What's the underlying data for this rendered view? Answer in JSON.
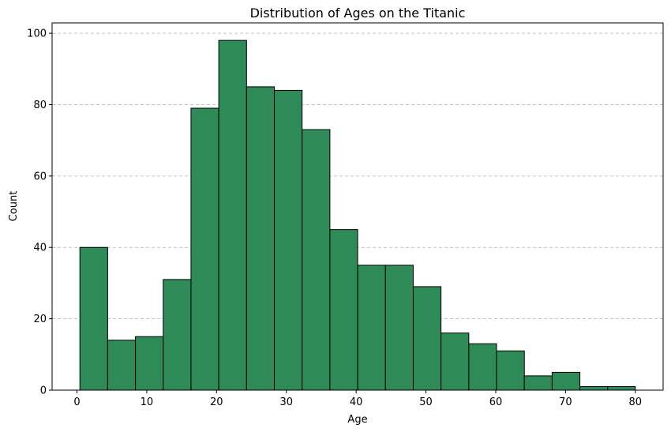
{
  "chart_data": {
    "type": "bar",
    "title": "Distribution of Ages on the Titanic",
    "xlabel": "Age",
    "ylabel": "Count",
    "bins": [
      {
        "start": 0.42,
        "end": 4.4,
        "count": 40
      },
      {
        "start": 4.4,
        "end": 8.38,
        "count": 14
      },
      {
        "start": 8.38,
        "end": 12.36,
        "count": 15
      },
      {
        "start": 12.36,
        "end": 16.34,
        "count": 31
      },
      {
        "start": 16.34,
        "end": 20.32,
        "count": 79
      },
      {
        "start": 20.32,
        "end": 24.3,
        "count": 98
      },
      {
        "start": 24.3,
        "end": 28.28,
        "count": 85
      },
      {
        "start": 28.28,
        "end": 32.26,
        "count": 84
      },
      {
        "start": 32.26,
        "end": 36.24,
        "count": 73
      },
      {
        "start": 36.24,
        "end": 40.22,
        "count": 45
      },
      {
        "start": 40.22,
        "end": 44.2,
        "count": 35
      },
      {
        "start": 44.2,
        "end": 48.18,
        "count": 35
      },
      {
        "start": 48.18,
        "end": 52.16,
        "count": 29
      },
      {
        "start": 52.16,
        "end": 56.14,
        "count": 16
      },
      {
        "start": 56.14,
        "end": 60.12,
        "count": 13
      },
      {
        "start": 60.12,
        "end": 64.1,
        "count": 11
      },
      {
        "start": 64.1,
        "end": 68.08,
        "count": 4
      },
      {
        "start": 68.08,
        "end": 72.06,
        "count": 5
      },
      {
        "start": 72.06,
        "end": 76.04,
        "count": 1
      },
      {
        "start": 76.04,
        "end": 80.0,
        "count": 1
      }
    ],
    "xlim": [
      -3.56,
      83.98
    ],
    "ylim": [
      0,
      102.9
    ],
    "xticks": [
      0,
      10,
      20,
      30,
      40,
      50,
      60,
      70,
      80
    ],
    "yticks": [
      0,
      20,
      40,
      60,
      80,
      100
    ],
    "grid": "y-dashed",
    "bar_color": "#2e8b57",
    "edge_color": "#000000"
  }
}
